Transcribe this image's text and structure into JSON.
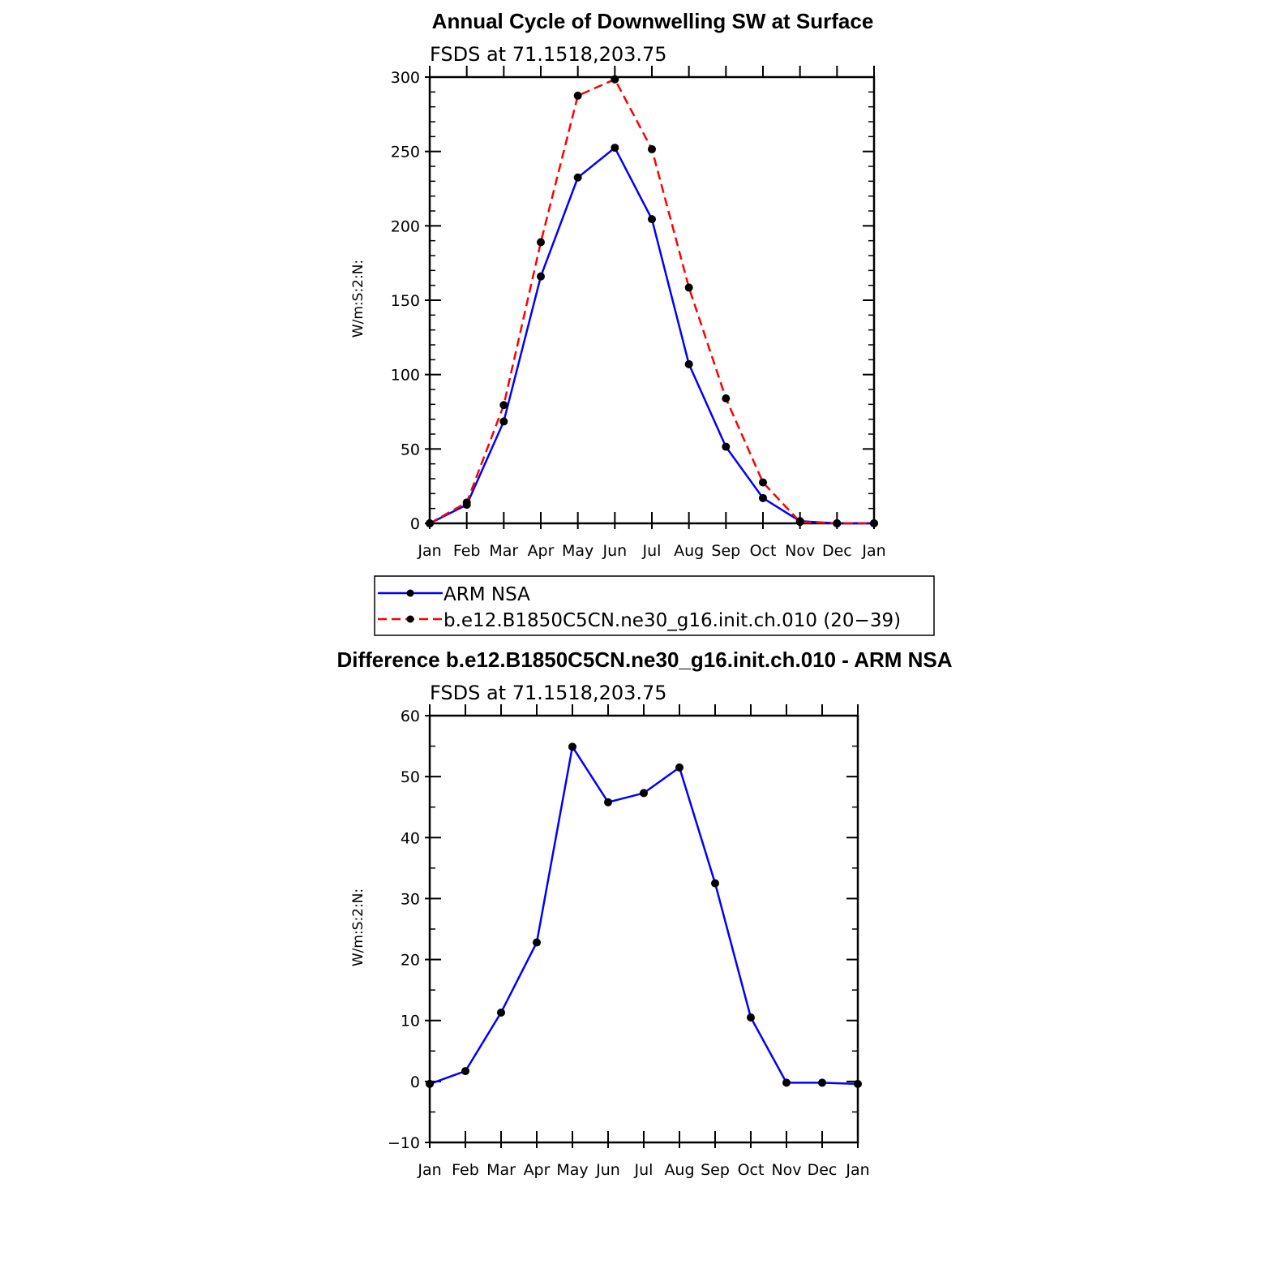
{
  "chart_data": [
    {
      "type": "line",
      "title": "Annual Cycle of Downwelling SW at Surface",
      "subtitle": "FSDS at 71.1518,203.75",
      "xlabel": "",
      "ylabel": "W/m:S:2:N:",
      "categories": [
        "Jan",
        "Feb",
        "Mar",
        "Apr",
        "May",
        "Jun",
        "Jul",
        "Aug",
        "Sep",
        "Oct",
        "Nov",
        "Dec",
        "Jan"
      ],
      "ylim": [
        0,
        300
      ],
      "yticks": [
        "0",
        "50",
        "100",
        "150",
        "200",
        "250",
        "300"
      ],
      "grid": false,
      "legend_placement": "below",
      "series": [
        {
          "name": "ARM NSA",
          "color": "#0000ff",
          "dash": "solid",
          "values": [
            0,
            12.5,
            68.5,
            166,
            232.5,
            252.5,
            204.5,
            107,
            51.5,
            17,
            1.5,
            0,
            0
          ]
        },
        {
          "name": "b.e12.B1850C5CN.ne30_g16.init.ch.010 (20−39)",
          "color": "#ff0000",
          "dash": "dashed",
          "values": [
            0,
            14,
            79.5,
            189,
            287.5,
            298.5,
            251.5,
            158.5,
            84,
            27.5,
            1,
            0,
            0
          ]
        }
      ]
    },
    {
      "type": "line",
      "title": "Difference b.e12.B1850C5CN.ne30_g16.init.ch.010 - ARM NSA",
      "subtitle": "FSDS at 71.1518,203.75",
      "xlabel": "",
      "ylabel": "W/m:S:2:N:",
      "categories": [
        "Jan",
        "Feb",
        "Mar",
        "Apr",
        "May",
        "Jun",
        "Jul",
        "Aug",
        "Sep",
        "Oct",
        "Nov",
        "Dec",
        "Jan"
      ],
      "ylim": [
        -10,
        60
      ],
      "yticks": [
        "−10",
        "0",
        "10",
        "20",
        "30",
        "40",
        "50",
        "60"
      ],
      "grid": false,
      "series": [
        {
          "color": "#0000ff",
          "dash": "solid",
          "values": [
            -0.4,
            1.7,
            11.3,
            22.8,
            54.9,
            45.8,
            47.3,
            51.5,
            32.5,
            10.5,
            -0.2,
            -0.2,
            -0.4
          ]
        }
      ]
    }
  ]
}
